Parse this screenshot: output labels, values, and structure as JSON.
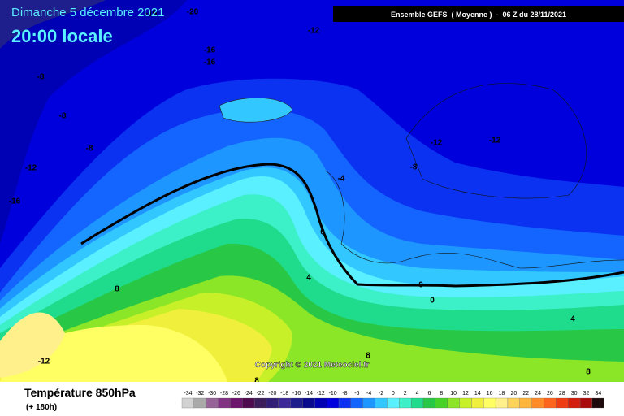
{
  "header": {
    "date": "Dimanche 5 décembre 2021",
    "time": "20:00 locale",
    "model": "Ensemble GEFS  ( Moyenne )  -  06 Z du 28/11/2021"
  },
  "map": {
    "contour_labels": [
      -20,
      -16,
      -12,
      -16,
      -16,
      -8,
      -8,
      -8,
      -12,
      -16,
      -12,
      -12,
      -8,
      -4,
      0,
      4,
      8,
      0,
      0,
      4,
      -12,
      8,
      8,
      8
    ],
    "copyright": "Copyright © 2021 Meteociel.fr"
  },
  "footer": {
    "variable": "Température 850hPa",
    "lead": "(+ 180h)"
  },
  "legend": {
    "values": [
      -34,
      -32,
      -30,
      -28,
      -26,
      -24,
      -22,
      -20,
      -18,
      -16,
      -14,
      -12,
      -10,
      -8,
      -6,
      -4,
      -2,
      0,
      2,
      4,
      6,
      8,
      10,
      12,
      14,
      16,
      18,
      20,
      22,
      24,
      26,
      28,
      30,
      32,
      34
    ],
    "colors": [
      "#d2d2d2",
      "#aaaaaa",
      "#966496",
      "#823282",
      "#6e146e",
      "#500a50",
      "#3c1e5a",
      "#321e78",
      "#3c2896",
      "#1e1e8c",
      "#0a0a8c",
      "#0000b4",
      "#0000dc",
      "#0a32f0",
      "#1464ff",
      "#1e96ff",
      "#32c8ff",
      "#5af0ff",
      "#3cf0c8",
      "#1edc8c",
      "#28c846",
      "#46d228",
      "#8ce628",
      "#c8f028",
      "#f0f03c",
      "#ffff64",
      "#fff08c",
      "#ffd25a",
      "#ffb43c",
      "#ff8c28",
      "#ff641e",
      "#f03c14",
      "#d21e0a",
      "#aa0a0a",
      "#1e0a0a"
    ]
  }
}
